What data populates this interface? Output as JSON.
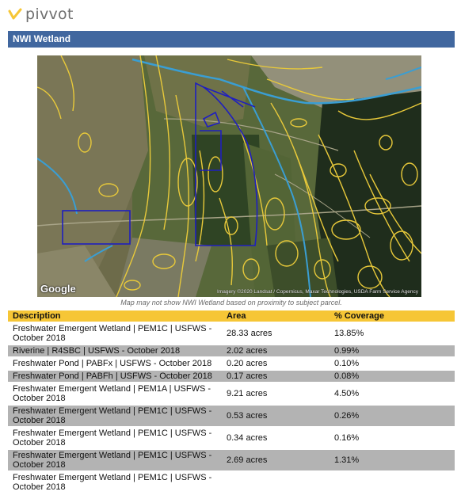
{
  "brand": {
    "name": "pivvot",
    "logo_icon": "chevron-logo-icon",
    "accent": "#f6c636"
  },
  "section": {
    "title": "NWI Wetland",
    "header_color": "#41679f"
  },
  "map": {
    "provider": "Google",
    "attribution": "Imagery ©2020 Landsat / Copernicus, Maxar Technologies, USDA Farm Service Agency",
    "note": "Map may not show NWI Wetland based on proximity to subject parcel.",
    "colors": {
      "wetland_outline": "#e8c93a",
      "riverine": "#3a9ed3",
      "parcel": "#1f1fbf"
    }
  },
  "table": {
    "headers": [
      "Description",
      "Area",
      "% Coverage"
    ],
    "rows": [
      {
        "description": "Freshwater Emergent Wetland | PEM1C | USFWS - October 2018",
        "area": "28.33 acres",
        "coverage": "13.85%"
      },
      {
        "description": "Riverine | R4SBC | USFWS - October 2018",
        "area": "2.02 acres",
        "coverage": "0.99%"
      },
      {
        "description": "Freshwater Pond | PABFx | USFWS - October 2018",
        "area": "0.20 acres",
        "coverage": "0.10%"
      },
      {
        "description": "Freshwater Pond | PABFh | USFWS - October 2018",
        "area": "0.17 acres",
        "coverage": "0.08%"
      },
      {
        "description": "Freshwater Emergent Wetland | PEM1A | USFWS - October 2018",
        "area": "9.21 acres",
        "coverage": "4.50%"
      },
      {
        "description": "Freshwater Emergent Wetland | PEM1C | USFWS - October 2018",
        "area": "0.53 acres",
        "coverage": "0.26%"
      },
      {
        "description": "Freshwater Emergent Wetland | PEM1C | USFWS - October 2018",
        "area": "0.34 acres",
        "coverage": "0.16%"
      },
      {
        "description": "Freshwater Emergent Wetland | PEM1C | USFWS - October 2018",
        "area": "2.69 acres",
        "coverage": "1.31%"
      },
      {
        "description": "Freshwater Emergent Wetland | PEM1C | USFWS - October 2018",
        "area": "",
        "coverage": ""
      }
    ]
  }
}
